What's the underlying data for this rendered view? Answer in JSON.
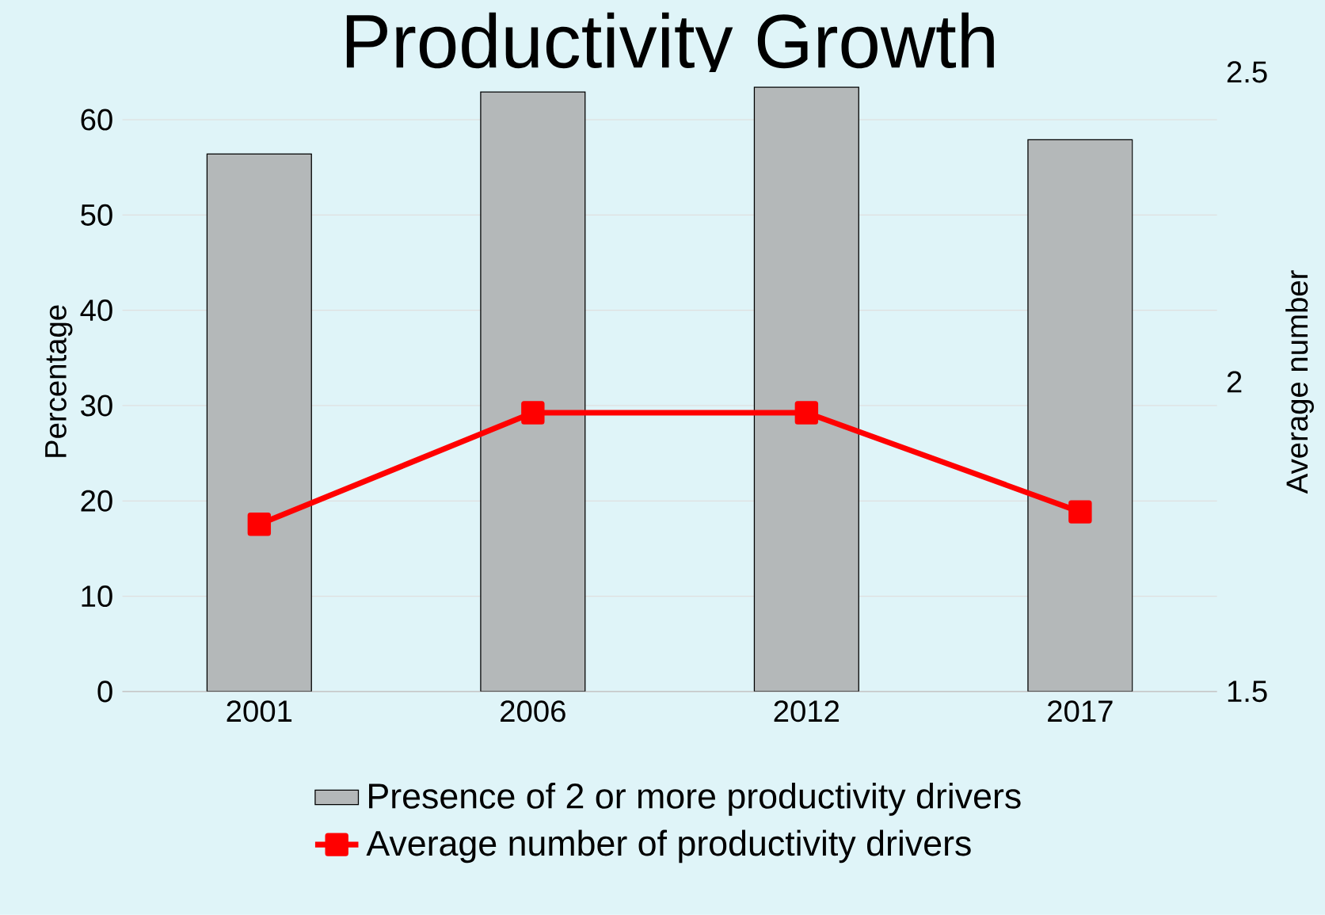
{
  "chart_data": {
    "type": "bar",
    "title": "Productivity Growth",
    "ylabel": "Percentage",
    "y2label": "Average  number",
    "categories": [
      "2001",
      "2006",
      "2012",
      "2017"
    ],
    "series": [
      {
        "name": "Presence of 2 or more productivity drivers",
        "color": "#b4b8b9",
        "values": [
          56.4,
          62.9,
          63.4,
          57.9
        ]
      },
      {
        "name": "Average number of productivity drivers",
        "type": "line",
        "axis": "y2",
        "color": "#ff0000",
        "marker": "square",
        "line_style": "solid",
        "values": [
          1.77,
          1.95,
          1.95,
          1.79
        ]
      }
    ],
    "ylim": [
      0,
      65
    ],
    "yticks": [
      0,
      10,
      20,
      30,
      40,
      50,
      60
    ],
    "y2lim": [
      1.5,
      2.5
    ],
    "y2ticks": [
      1.5,
      2,
      2.5
    ],
    "grid": "y",
    "legend": "bottom"
  }
}
